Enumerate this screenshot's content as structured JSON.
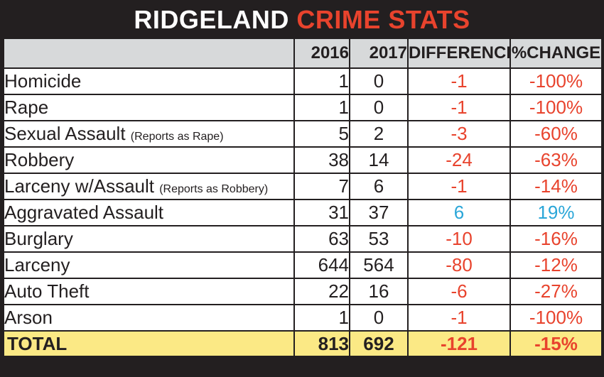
{
  "title": {
    "part1": "RIDGELAND",
    "part2": "CRIME STATS"
  },
  "colors": {
    "title_bg": "#231f20",
    "header_bg": "#d7d9da",
    "negative": "#e8432d",
    "positive": "#2aa6d8",
    "total_bg": "#fbe985"
  },
  "headers": {
    "label": "",
    "y2016": "2016",
    "y2017": "2017",
    "diff": "DIFFERENCE",
    "pct": "%CHANGE"
  },
  "rows": [
    {
      "label": "Homicide",
      "note": "",
      "v2016": "1",
      "v2017": "0",
      "diff": "-1",
      "pct": "-100%",
      "sign": "neg"
    },
    {
      "label": "Rape",
      "note": "",
      "v2016": "1",
      "v2017": "0",
      "diff": "-1",
      "pct": "-100%",
      "sign": "neg"
    },
    {
      "label": "Sexual Assault",
      "note": "(Reports as Rape)",
      "v2016": "5",
      "v2017": "2",
      "diff": "-3",
      "pct": "-60%",
      "sign": "neg"
    },
    {
      "label": "Robbery",
      "note": "",
      "v2016": "38",
      "v2017": "14",
      "diff": "-24",
      "pct": "-63%",
      "sign": "neg"
    },
    {
      "label": "Larceny w/Assault",
      "note": "(Reports as Robbery)",
      "v2016": "7",
      "v2017": "6",
      "diff": "-1",
      "pct": "-14%",
      "sign": "neg"
    },
    {
      "label": "Aggravated Assault",
      "note": "",
      "v2016": "31",
      "v2017": "37",
      "diff": "6",
      "pct": "19%",
      "sign": "pos"
    },
    {
      "label": "Burglary",
      "note": "",
      "v2016": "63",
      "v2017": "53",
      "diff": "-10",
      "pct": "-16%",
      "sign": "neg"
    },
    {
      "label": "Larceny",
      "note": "",
      "v2016": "644",
      "v2017": "564",
      "diff": "-80",
      "pct": "-12%",
      "sign": "neg"
    },
    {
      "label": "Auto Theft",
      "note": "",
      "v2016": "22",
      "v2017": "16",
      "diff": "-6",
      "pct": "-27%",
      "sign": "neg"
    },
    {
      "label": "Arson",
      "note": "",
      "v2016": "1",
      "v2017": "0",
      "diff": "-1",
      "pct": "-100%",
      "sign": "neg"
    }
  ],
  "total": {
    "label": "TOTAL",
    "v2016": "813",
    "v2017": "692",
    "diff": "-121",
    "pct": "-15%"
  },
  "chart_data": {
    "type": "table",
    "title": "RIDGELAND CRIME STATS",
    "columns": [
      "",
      "2016",
      "2017",
      "DIFFERENCE",
      "%CHANGE"
    ],
    "categories": [
      "Homicide",
      "Rape",
      "Sexual Assault (Reports as Rape)",
      "Robbery",
      "Larceny w/Assault (Reports as Robbery)",
      "Aggravated Assault",
      "Burglary",
      "Larceny",
      "Auto Theft",
      "Arson",
      "TOTAL"
    ],
    "series": [
      {
        "name": "2016",
        "values": [
          1,
          1,
          5,
          38,
          7,
          31,
          63,
          644,
          22,
          1,
          813
        ]
      },
      {
        "name": "2017",
        "values": [
          0,
          0,
          2,
          14,
          6,
          37,
          53,
          564,
          16,
          0,
          692
        ]
      },
      {
        "name": "DIFFERENCE",
        "values": [
          -1,
          -1,
          -3,
          -24,
          -1,
          6,
          -10,
          -80,
          -6,
          -1,
          -121
        ]
      },
      {
        "name": "%CHANGE",
        "values": [
          -100,
          -100,
          -60,
          -63,
          -14,
          19,
          -16,
          -12,
          -27,
          -100,
          -15
        ]
      }
    ]
  }
}
